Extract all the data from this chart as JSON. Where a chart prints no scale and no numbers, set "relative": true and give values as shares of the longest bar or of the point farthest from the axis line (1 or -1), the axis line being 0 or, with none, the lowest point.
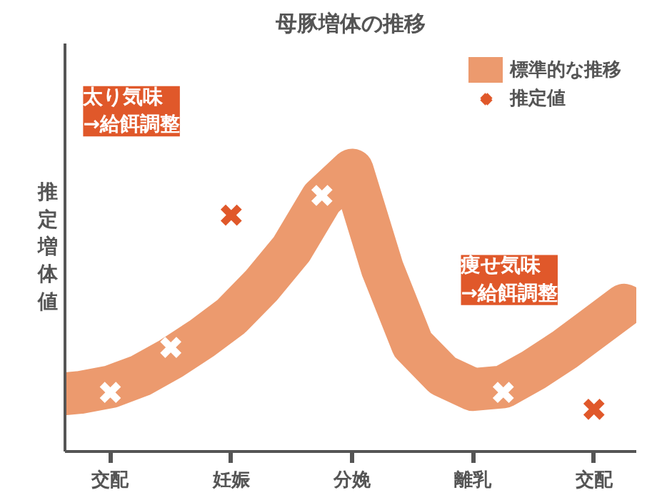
{
  "chart_data": {
    "type": "line",
    "title": "母豚増体の推移",
    "ylabel": "推定増体値",
    "relative": true,
    "legend": "top right",
    "grid": false,
    "categories": [
      null,
      null,
      "交配",
      null,
      null,
      null,
      "妊娠",
      null,
      null,
      null,
      "分娩",
      null,
      null,
      null,
      "離乳",
      null,
      null,
      null,
      "交配",
      null
    ],
    "series": [
      {
        "name": "標準的な推移",
        "color": "#ec9a6e",
        "values": [
          0.2,
          0.21,
          0.23,
          0.27,
          0.33,
          0.4,
          0.48,
          0.59,
          0.72,
          0.9,
          1.0,
          0.65,
          0.38,
          0.27,
          0.22,
          0.23,
          0.29,
          0.36,
          0.44,
          0.52
        ]
      },
      {
        "name": "推定値",
        "type": "scatter",
        "marker": "cross",
        "colors": [
          null,
          null,
          "#ffffff",
          null,
          "#ffffff",
          null,
          "#e0582a",
          null,
          null,
          "#ffffff",
          null,
          null,
          null,
          null,
          null,
          "#ffffff",
          null,
          null,
          "#e0582a",
          null
        ],
        "values": [
          null,
          null,
          0.21,
          null,
          0.37,
          null,
          0.84,
          null,
          null,
          0.91,
          null,
          null,
          null,
          null,
          null,
          0.21,
          null,
          null,
          0.15,
          null
        ]
      }
    ],
    "annotations": [
      "太り気味\n→給餌調整",
      "痩せ気味\n→給餌調整"
    ]
  }
}
